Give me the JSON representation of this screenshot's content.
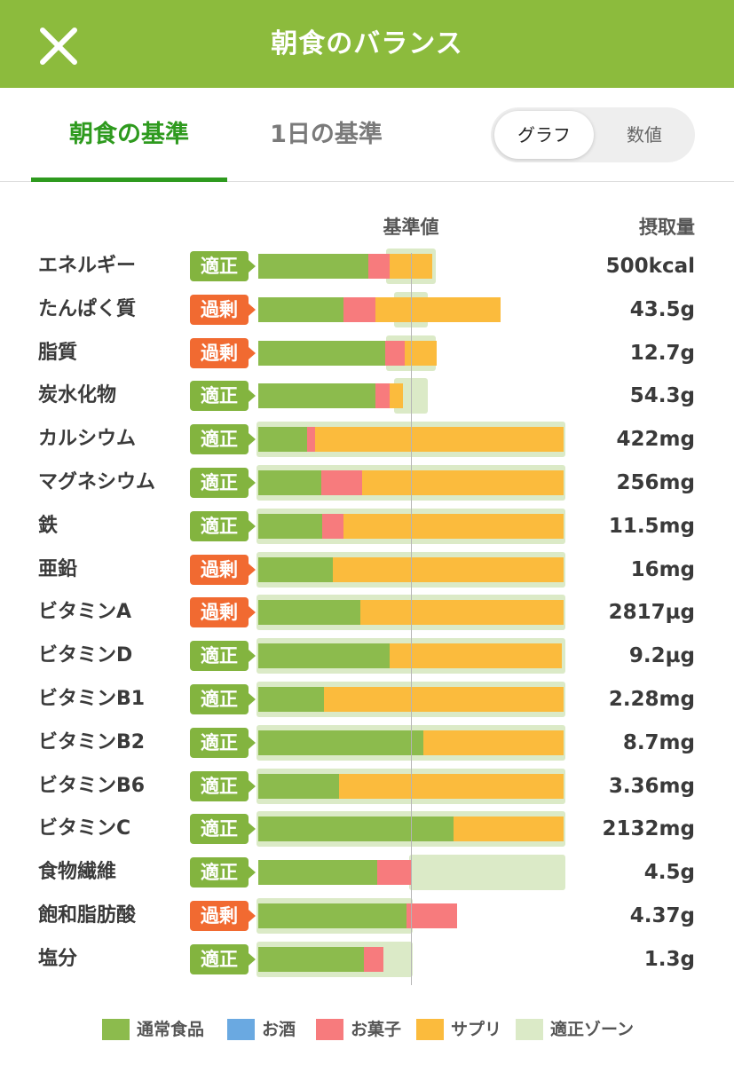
{
  "header": {
    "title": "朝食のバランス",
    "close_icon": "close-icon"
  },
  "tabs": [
    {
      "label": "朝食の基準",
      "active": true
    },
    {
      "label": "1日の基準",
      "active": false
    }
  ],
  "view_toggle": {
    "graph": "グラフ",
    "numeric": "数値",
    "selected": "グラフ"
  },
  "columns": {
    "standard": "基準値",
    "intake": "摂取量"
  },
  "colors": {
    "header": "#8cbb3d",
    "regular_food": "#8cbb4d",
    "alcohol": "#6aa9e1",
    "snacks": "#f77b7d",
    "supplement": "#fbbb3d",
    "zone": "#dbeac7",
    "status_ok": "#83b43f",
    "status_over": "#f16a31"
  },
  "status_labels": {
    "ok": "適正",
    "over": "過剰"
  },
  "legend": [
    {
      "label": "通常食品",
      "color": "#8cbb4d"
    },
    {
      "label": "お酒",
      "color": "#6aa9e1"
    },
    {
      "label": "お菓子",
      "color": "#f77b7d"
    },
    {
      "label": "サプリ",
      "color": "#fbbb3d"
    },
    {
      "label": "適正ゾーン",
      "color": "#dbeac7"
    }
  ],
  "chart_data": {
    "type": "bar",
    "stacked": true,
    "orientation": "horizontal",
    "value_unit": "ratio of standard (1.0 = standard line)",
    "series_order": [
      "regular_food",
      "snacks",
      "supplement"
    ],
    "reference_value": 1.0,
    "scale_max": 2.0,
    "rows": [
      {
        "name": "エネルギー",
        "status": "ok",
        "value": "500kcal",
        "zone": [
          0.85,
          1.15
        ],
        "regular_food": 0.72,
        "snacks": 0.14,
        "supplement": 0.28
      },
      {
        "name": "たんぱく質",
        "status": "over",
        "value": "43.5g",
        "zone": [
          0.9,
          1.1
        ],
        "regular_food": 0.56,
        "snacks": 0.21,
        "supplement": 0.82
      },
      {
        "name": "脂質",
        "status": "over",
        "value": "12.7g",
        "zone": [
          0.85,
          1.15
        ],
        "regular_food": 0.83,
        "snacks": 0.13,
        "supplement": 0.21
      },
      {
        "name": "炭水化物",
        "status": "ok",
        "value": "54.3g",
        "zone": [
          0.9,
          1.1
        ],
        "regular_food": 0.77,
        "snacks": 0.09,
        "supplement": 0.09
      },
      {
        "name": "カルシウム",
        "status": "ok",
        "value": "422mg",
        "zone": [
          0,
          2.0
        ],
        "regular_food": 0.32,
        "snacks": 0.05,
        "supplement": 1.63
      },
      {
        "name": "マグネシウム",
        "status": "ok",
        "value": "256mg",
        "zone": [
          0,
          2.0
        ],
        "regular_food": 0.41,
        "snacks": 0.27,
        "supplement": 1.32
      },
      {
        "name": "鉄",
        "status": "ok",
        "value": "11.5mg",
        "zone": [
          0,
          2.0
        ],
        "regular_food": 0.42,
        "snacks": 0.14,
        "supplement": 1.44
      },
      {
        "name": "亜鉛",
        "status": "over",
        "value": "16mg",
        "zone": [
          0,
          2.0
        ],
        "regular_food": 0.49,
        "snacks": 0,
        "supplement": 1.51
      },
      {
        "name": "ビタミンA",
        "status": "over",
        "value": "2817µg",
        "zone": [
          0,
          2.0
        ],
        "regular_food": 0.67,
        "snacks": 0,
        "supplement": 1.33
      },
      {
        "name": "ビタミンD",
        "status": "ok",
        "value": "9.2µg",
        "zone": [
          0,
          2.0
        ],
        "regular_food": 0.86,
        "snacks": 0,
        "supplement": 1.13
      },
      {
        "name": "ビタミンB1",
        "status": "ok",
        "value": "2.28mg",
        "zone": [
          0,
          2.0
        ],
        "regular_food": 0.43,
        "snacks": 0,
        "supplement": 1.57
      },
      {
        "name": "ビタミンB2",
        "status": "ok",
        "value": "8.7mg",
        "zone": [
          0,
          2.0
        ],
        "regular_food": 1.08,
        "snacks": 0,
        "supplement": 0.92
      },
      {
        "name": "ビタミンB6",
        "status": "ok",
        "value": "3.36mg",
        "zone": [
          0,
          2.0
        ],
        "regular_food": 0.53,
        "snacks": 0,
        "supplement": 1.47
      },
      {
        "name": "ビタミンC",
        "status": "ok",
        "value": "2132mg",
        "zone": [
          0,
          2.0
        ],
        "regular_food": 1.28,
        "snacks": 0,
        "supplement": 0.72
      },
      {
        "name": "食物繊維",
        "status": "ok",
        "value": "4.5g",
        "zone": [
          1.0,
          2.0
        ],
        "regular_food": 0.78,
        "snacks": 0.22,
        "supplement": 0
      },
      {
        "name": "飽和脂肪酸",
        "status": "over",
        "value": "4.37g",
        "zone": [
          0,
          1.0
        ],
        "regular_food": 0.97,
        "snacks": 0.33,
        "supplement": 0
      },
      {
        "name": "塩分",
        "status": "ok",
        "value": "1.3g",
        "zone": [
          0,
          1.0
        ],
        "regular_food": 0.69,
        "snacks": 0.13,
        "supplement": 0
      }
    ]
  }
}
